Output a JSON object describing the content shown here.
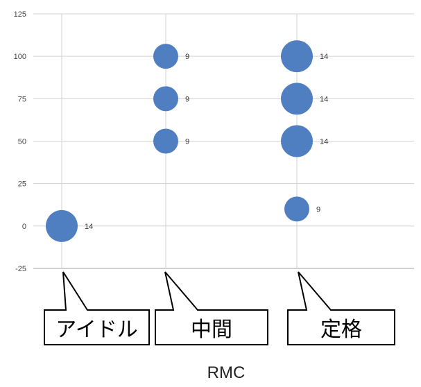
{
  "chart_data": {
    "type": "bubble",
    "title": "",
    "xlabel": "RMC",
    "ylabel": "",
    "ylim": [
      -25,
      125
    ],
    "yticks": [
      -25,
      0,
      25,
      50,
      75,
      100,
      125
    ],
    "grid": true,
    "categories": [
      "アイドル",
      "中間",
      "定格"
    ],
    "points": [
      {
        "category": "アイドル",
        "y": 0,
        "size": 14,
        "label": "14"
      },
      {
        "category": "中間",
        "y": 100,
        "size": 9,
        "label": "9"
      },
      {
        "category": "中間",
        "y": 75,
        "size": 9,
        "label": "9"
      },
      {
        "category": "中間",
        "y": 50,
        "size": 9,
        "label": "9"
      },
      {
        "category": "定格",
        "y": 100,
        "size": 14,
        "label": "14"
      },
      {
        "category": "定格",
        "y": 75,
        "size": 14,
        "label": "14"
      },
      {
        "category": "定格",
        "y": 50,
        "size": 14,
        "label": "14"
      },
      {
        "category": "定格",
        "y": 10,
        "size": 9,
        "label": "9"
      }
    ],
    "callouts": [
      "アイドル",
      "中間",
      "定格"
    ],
    "colors": {
      "bubble": "#4F7FC0",
      "grid": "#d0d0d0",
      "axis": "#a0a0a0"
    }
  }
}
